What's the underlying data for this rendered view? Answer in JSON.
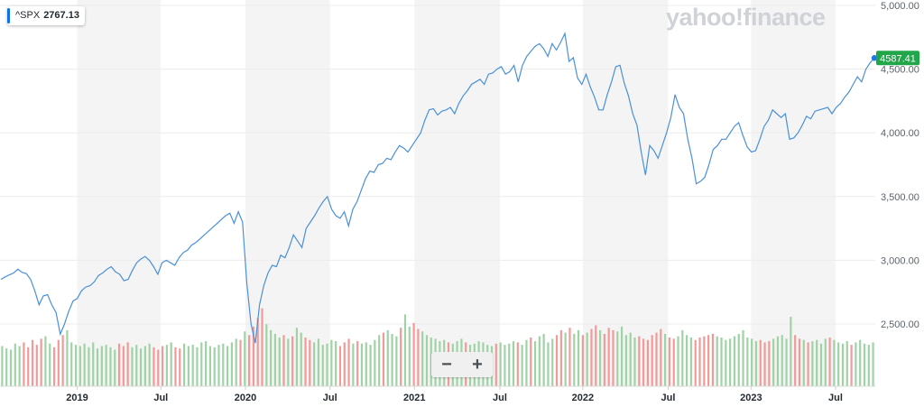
{
  "ticker": {
    "symbol": "^SPX",
    "value": "2767.13"
  },
  "brand": {
    "logo_text": "yahoo!finance"
  },
  "zoom": {
    "minus": "−",
    "plus": "+"
  },
  "colors": {
    "line": "#4a90d9",
    "badge": "#21a649",
    "vol_up": "#9fd3a6",
    "vol_down": "#f29a9a",
    "band": "#f4f4f4"
  },
  "chart_data": {
    "type": "line",
    "series": [
      {
        "values": [
          2850,
          2870,
          2885,
          2900,
          2930,
          2905,
          2895,
          2850,
          2760,
          2650,
          2720,
          2730,
          2650,
          2590,
          2420,
          2500,
          2600,
          2680,
          2700,
          2760,
          2790,
          2800,
          2830,
          2880,
          2900,
          2930,
          2950,
          2910,
          2890,
          2840,
          2850,
          2920,
          2980,
          3010,
          3030,
          3000,
          2950,
          2890,
          2980,
          3000,
          2980,
          2960,
          3020,
          3060,
          3080,
          3120,
          3140,
          3170,
          3200,
          3230,
          3260,
          3290,
          3320,
          3350,
          3370,
          3290,
          3380,
          3300,
          2820,
          2500,
          2350,
          2650,
          2800,
          2900,
          2960,
          2950,
          3040,
          3020,
          3100,
          3200,
          3150,
          3100,
          3250,
          3300,
          3350,
          3410,
          3460,
          3500,
          3400,
          3350,
          3330,
          3380,
          3270,
          3400,
          3460,
          3550,
          3640,
          3700,
          3690,
          3750,
          3760,
          3800,
          3790,
          3850,
          3900,
          3880,
          3850,
          3900,
          3950,
          4000,
          4100,
          4180,
          4190,
          4140,
          4170,
          4180,
          4200,
          4150,
          4230,
          4290,
          4330,
          4380,
          4400,
          4420,
          4380,
          4460,
          4470,
          4500,
          4520,
          4460,
          4480,
          4530,
          4400,
          4530,
          4600,
          4640,
          4680,
          4700,
          4660,
          4600,
          4700,
          4650,
          4710,
          4780,
          4560,
          4590,
          4430,
          4380,
          4460,
          4360,
          4280,
          4180,
          4180,
          4300,
          4400,
          4520,
          4530,
          4390,
          4290,
          4150,
          4060,
          3850,
          3670,
          3900,
          3860,
          3800,
          3900,
          4000,
          4120,
          4300,
          4200,
          4150,
          3950,
          3800,
          3600,
          3620,
          3650,
          3750,
          3870,
          3900,
          3950,
          3950,
          4000,
          4050,
          4080,
          3980,
          3890,
          3850,
          3860,
          3950,
          4050,
          4100,
          4180,
          4150,
          4120,
          4150,
          3950,
          3960,
          4000,
          4060,
          4130,
          4110,
          4170,
          4180,
          4190,
          4200,
          4150,
          4200,
          4230,
          4280,
          4320,
          4380,
          4440,
          4400,
          4500,
          4550,
          4587.41
        ]
      }
    ],
    "volume": [
      3.3,
      3.1,
      3.0,
      3.5,
      3.3,
      3.6,
      3.2,
      3.8,
      3.4,
      3.9,
      4.1,
      3.5,
      3.2,
      3.8,
      4.2,
      4.6,
      3.6,
      3.4,
      3.3,
      3.5,
      3.2,
      3.6,
      3.1,
      3.3,
      3.4,
      3.2,
      3.0,
      3.5,
      3.3,
      3.6,
      3.2,
      3.4,
      3.1,
      3.3,
      3.5,
      3.2,
      3.0,
      3.3,
      3.4,
      3.6,
      3.2,
      3.1,
      3.5,
      3.3,
      3.4,
      3.2,
      3.6,
      3.7,
      3.3,
      3.2,
      3.4,
      3.5,
      3.3,
      3.6,
      3.9,
      3.8,
      4.5,
      4.2,
      4.9,
      5.6,
      6.4,
      5.1,
      4.6,
      4.3,
      4.0,
      4.2,
      3.9,
      4.1,
      4.8,
      4.4,
      4.0,
      3.8,
      3.6,
      3.9,
      3.4,
      3.5,
      3.8,
      3.7,
      3.3,
      3.6,
      3.9,
      3.5,
      3.7,
      3.5,
      3.6,
      3.4,
      3.8,
      4.2,
      4.4,
      4.6,
      4.3,
      4.1,
      4.8,
      5.9,
      4.9,
      5.2,
      4.7,
      4.5,
      4.2,
      4.0,
      3.9,
      3.7,
      3.8,
      3.6,
      3.5,
      3.7,
      3.9,
      3.6,
      3.4,
      3.5,
      3.7,
      3.6,
      3.4,
      3.3,
      3.5,
      3.6,
      3.4,
      3.5,
      3.7,
      3.6,
      3.4,
      3.8,
      4.0,
      3.7,
      4.1,
      4.3,
      3.6,
      3.9,
      4.2,
      4.6,
      4.4,
      4.8,
      4.3,
      4.6,
      4.2,
      4.4,
      4.7,
      5.0,
      4.6,
      4.3,
      4.8,
      4.6,
      4.5,
      4.9,
      4.2,
      4.4,
      4.0,
      4.1,
      3.9,
      3.8,
      4.2,
      4.4,
      4.7,
      4.3,
      4.0,
      3.9,
      4.1,
      4.6,
      4.2,
      4.0,
      3.8,
      4.0,
      4.1,
      4.2,
      4.3,
      4.1,
      4.0,
      3.8,
      3.9,
      4.1,
      4.3,
      4.6,
      4.0,
      3.9,
      3.7,
      3.8,
      3.6,
      3.7,
      3.9,
      4.1,
      4.2,
      3.9,
      5.7,
      4.2,
      3.9,
      3.8,
      3.6,
      3.7,
      3.8,
      3.5,
      3.9,
      4.0,
      3.8,
      3.6,
      3.5,
      3.7,
      3.4,
      3.6,
      3.8,
      3.5,
      3.4,
      3.6
    ],
    "last_value": "4587.41",
    "ylim": [
      2100,
      5000
    ],
    "yticks": [
      "5,000.00",
      "4,500.00",
      "4,000.00",
      "3,500.00",
      "3,000.00",
      "2,500.00"
    ],
    "ytick_values": [
      5000,
      4500,
      4000,
      3500,
      3000,
      2500
    ],
    "xticks": [
      "2019",
      "Jul",
      "2020",
      "Jul",
      "2021",
      "Jul",
      "2022",
      "Jul",
      "2023",
      "Jul"
    ],
    "xtick_fracs": [
      0.0882,
      0.1838,
      0.2804,
      0.377,
      0.4735,
      0.5711,
      0.6659,
      0.7634,
      0.8581,
      0.9546
    ],
    "shaded_bands": [
      [
        0.0882,
        0.1838
      ],
      [
        0.2804,
        0.377
      ],
      [
        0.4735,
        0.5711
      ],
      [
        0.6659,
        0.7634
      ],
      [
        0.8581,
        0.9546
      ]
    ],
    "grid": "horizontal"
  }
}
